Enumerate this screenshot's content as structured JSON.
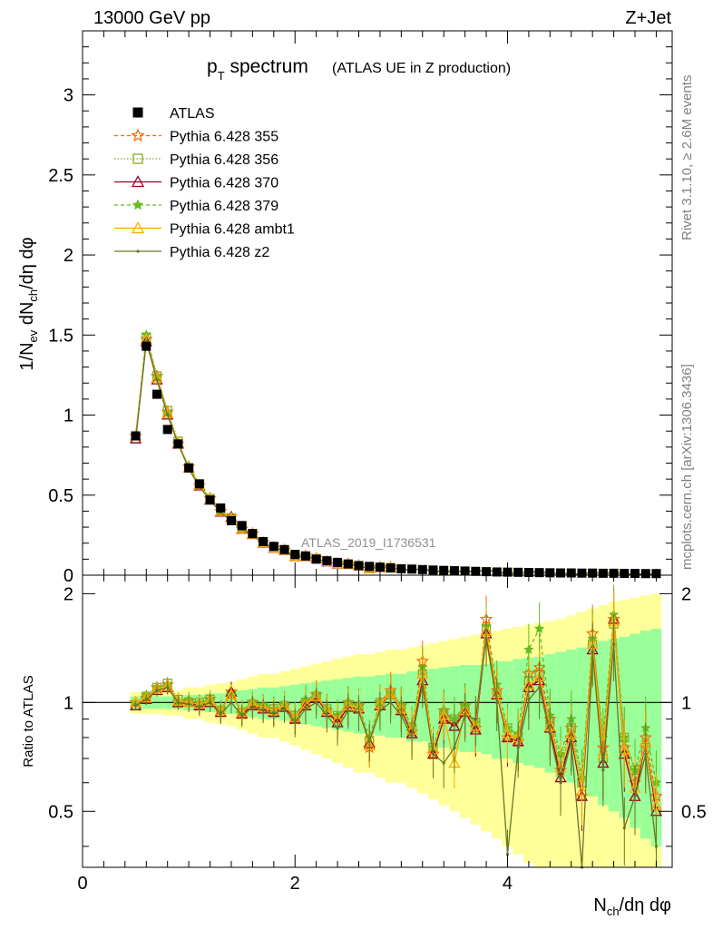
{
  "header": {
    "energy_label": "13000 GeV pp",
    "process_label": "Z+Jet"
  },
  "side_labels": {
    "rivet": "Rivet 3.1.10, ≥ 2.6M events",
    "mcplots": "mcplots.cern.ch [arXiv:1306.3436]"
  },
  "chart_data": [
    {
      "type": "line",
      "title_main": "p",
      "title_sub": "T",
      "title_rest": " spectrum",
      "title_paren": "(ATLAS UE in Z production)",
      "analysis_id": "ATLAS_2019_I1736531",
      "ylabel": "1/N_ev dN_ch/dη dφ",
      "xlim": [
        0,
        5.55
      ],
      "ylim": [
        0,
        3.4
      ],
      "x": [
        0.5,
        0.6,
        0.7,
        0.8,
        0.9,
        1.0,
        1.1,
        1.2,
        1.3,
        1.4,
        1.5,
        1.6,
        1.7,
        1.8,
        1.9,
        2.0,
        2.1,
        2.2,
        2.3,
        2.4,
        2.5,
        2.6,
        2.7,
        2.8,
        2.9,
        3.0,
        3.1,
        3.2,
        3.3,
        3.4,
        3.5,
        3.6,
        3.7,
        3.8,
        3.9,
        4.0,
        4.1,
        4.2,
        4.3,
        4.4,
        4.5,
        4.6,
        4.7,
        4.8,
        4.9,
        5.0,
        5.1,
        5.2,
        5.3,
        5.4
      ],
      "yticks": [
        0,
        0.5,
        1,
        1.5,
        2,
        2.5,
        3
      ],
      "ytick_labels": [
        "0",
        "0.5",
        "1",
        "1.5",
        "2",
        "2.5",
        "3"
      ],
      "legend_placement": "top-left",
      "series": [
        {
          "name": "ATLAS",
          "color": "#000000",
          "marker": "square",
          "dash": "",
          "values": [
            0.87,
            1.43,
            1.13,
            0.91,
            0.82,
            0.67,
            0.57,
            0.47,
            0.42,
            0.34,
            0.31,
            0.26,
            0.21,
            0.18,
            0.16,
            0.13,
            0.12,
            0.1,
            0.09,
            0.08,
            0.07,
            0.06,
            0.055,
            0.05,
            0.045,
            0.04,
            0.038,
            0.035,
            0.032,
            0.03,
            0.028,
            0.026,
            0.024,
            0.022,
            0.02,
            0.019,
            0.018,
            0.017,
            0.016,
            0.015,
            0.014,
            0.014,
            0.013,
            0.013,
            0.012,
            0.012,
            0.011,
            0.011,
            0.01,
            0.01
          ]
        },
        {
          "name": "Pythia 6.428 355",
          "color": "#ff6600",
          "marker": "star-open",
          "dash": "4,3"
        },
        {
          "name": "Pythia 6.428 356",
          "color": "#88aa22",
          "marker": "square-open",
          "dash": "1.5,2"
        },
        {
          "name": "Pythia 6.428 370",
          "color": "#990022",
          "marker": "triangle-open",
          "dash": ""
        },
        {
          "name": "Pythia 6.428 379",
          "color": "#66bb22",
          "marker": "star",
          "dash": "4,3"
        },
        {
          "name": "Pythia 6.428 ambt1",
          "color": "#ffaa00",
          "marker": "triangle-open",
          "dash": ""
        },
        {
          "name": "Pythia 6.428 z2",
          "color": "#667722",
          "marker": "dot",
          "dash": ""
        }
      ],
      "mc_shape": [
        0.85,
        1.47,
        1.2,
        0.97,
        0.81,
        0.68,
        0.57,
        0.46,
        0.4,
        0.34,
        0.28,
        0.25,
        0.21,
        0.18,
        0.16,
        0.13,
        0.12,
        0.1,
        0.09,
        0.08,
        0.07,
        0.06,
        0.055,
        0.05,
        0.045,
        0.04,
        0.038,
        0.035,
        0.032,
        0.03,
        0.028,
        0.026,
        0.024,
        0.022,
        0.02,
        0.019,
        0.018,
        0.017,
        0.016,
        0.015,
        0.014,
        0.014,
        0.013,
        0.013,
        0.012,
        0.012,
        0.011,
        0.011,
        0.01,
        0.01
      ]
    },
    {
      "type": "line",
      "ylabel": "Ratio to ATLAS",
      "xlabel": "N_ch/dη dφ",
      "xlim": [
        0,
        5.55
      ],
      "ylim": [
        0.35,
        2.25
      ],
      "xticks": [
        0,
        2,
        4
      ],
      "xtick_labels": [
        "0",
        "2",
        "4"
      ],
      "yticks": [
        0.5,
        1,
        2
      ],
      "ytick_labels": [
        "0.5",
        "1",
        "2"
      ],
      "band_inner_halfwidth": [
        0.04,
        0.04,
        0.04,
        0.04,
        0.04,
        0.05,
        0.05,
        0.06,
        0.06,
        0.07,
        0.08,
        0.09,
        0.1,
        0.1,
        0.11,
        0.12,
        0.13,
        0.14,
        0.15,
        0.16,
        0.17,
        0.18,
        0.18,
        0.19,
        0.2,
        0.2,
        0.22,
        0.22,
        0.24,
        0.25,
        0.26,
        0.27,
        0.27,
        0.28,
        0.3,
        0.3,
        0.32,
        0.33,
        0.34,
        0.36,
        0.38,
        0.4,
        0.42,
        0.45,
        0.48,
        0.5,
        0.52,
        0.55,
        0.58,
        0.6
      ],
      "band_outer_halfwidth": [
        0.07,
        0.07,
        0.07,
        0.08,
        0.08,
        0.1,
        0.1,
        0.12,
        0.13,
        0.14,
        0.16,
        0.18,
        0.2,
        0.2,
        0.22,
        0.24,
        0.26,
        0.28,
        0.3,
        0.32,
        0.34,
        0.36,
        0.36,
        0.38,
        0.4,
        0.4,
        0.42,
        0.44,
        0.46,
        0.48,
        0.5,
        0.52,
        0.54,
        0.56,
        0.58,
        0.6,
        0.62,
        0.64,
        0.66,
        0.68,
        0.7,
        0.74,
        0.78,
        0.82,
        0.86,
        0.9,
        0.92,
        0.95,
        0.98,
        1.0
      ],
      "series": [
        {
          "name": "Pythia 6.428 355",
          "values": [
            1.0,
            1.03,
            1.1,
            1.12,
            1.0,
            1.01,
            0.98,
            1.02,
            0.95,
            1.07,
            0.93,
            1.0,
            0.97,
            0.95,
            0.98,
            0.9,
            1.0,
            1.05,
            0.95,
            0.9,
            1.0,
            0.98,
            0.75,
            1.0,
            1.08,
            0.98,
            0.83,
            1.3,
            0.72,
            0.95,
            0.88,
            0.98,
            0.85,
            1.7,
            1.08,
            0.8,
            0.78,
            1.2,
            1.25,
            0.9,
            0.65,
            0.85,
            0.55,
            1.55,
            0.75,
            1.7,
            0.75,
            0.6,
            0.8,
            0.55
          ]
        },
        {
          "name": "Pythia 6.428 356",
          "values": [
            0.98,
            1.04,
            1.1,
            1.13,
            1.02,
            1.0,
            1.0,
            1.02,
            0.95,
            1.05,
            0.94,
            0.99,
            0.97,
            0.96,
            0.98,
            0.92,
            1.0,
            1.04,
            0.96,
            0.92,
            0.98,
            0.97,
            0.78,
            1.0,
            1.05,
            0.97,
            0.85,
            1.2,
            0.75,
            0.92,
            0.9,
            0.95,
            0.88,
            1.6,
            1.05,
            0.85,
            0.8,
            1.15,
            1.2,
            0.88,
            0.7,
            0.85,
            0.6,
            1.45,
            0.7,
            1.65,
            0.8,
            0.65,
            0.75,
            0.5
          ]
        },
        {
          "name": "Pythia 6.428 370",
          "values": [
            0.98,
            1.02,
            1.08,
            1.1,
            1.0,
            1.0,
            0.98,
            1.0,
            0.94,
            1.07,
            0.93,
            0.98,
            0.96,
            0.94,
            0.97,
            0.9,
            0.98,
            1.03,
            0.94,
            0.88,
            0.97,
            0.96,
            0.77,
            0.98,
            1.06,
            0.95,
            0.82,
            1.15,
            0.72,
            0.9,
            0.86,
            0.94,
            0.84,
            1.55,
            1.05,
            0.8,
            0.78,
            1.1,
            1.15,
            0.85,
            0.62,
            0.8,
            0.55,
            1.4,
            0.68,
            1.7,
            0.72,
            0.55,
            0.78,
            0.5
          ]
        },
        {
          "name": "Pythia 6.428 379",
          "values": [
            1.0,
            1.05,
            1.1,
            1.12,
            1.0,
            1.02,
            1.0,
            1.02,
            0.96,
            1.05,
            0.95,
            1.0,
            0.98,
            0.96,
            0.99,
            0.92,
            1.02,
            1.05,
            0.96,
            0.92,
            1.0,
            0.98,
            0.8,
            1.0,
            1.06,
            0.98,
            0.86,
            1.25,
            0.75,
            0.95,
            0.9,
            0.98,
            0.88,
            1.62,
            1.12,
            0.85,
            0.82,
            1.4,
            1.6,
            0.92,
            0.72,
            0.9,
            0.62,
            1.5,
            0.8,
            1.75,
            0.8,
            0.65,
            0.85,
            0.6
          ]
        },
        {
          "name": "Pythia 6.428 ambt1",
          "values": [
            1.0,
            1.03,
            1.09,
            1.11,
            1.01,
            1.0,
            0.99,
            1.01,
            0.95,
            1.05,
            0.94,
            0.99,
            0.97,
            0.95,
            0.98,
            0.91,
            0.99,
            1.04,
            0.95,
            0.9,
            0.98,
            0.97,
            0.76,
            0.99,
            1.06,
            0.96,
            0.84,
            1.2,
            0.74,
            0.92,
            0.68,
            0.95,
            0.86,
            1.58,
            1.06,
            0.82,
            0.8,
            1.12,
            1.18,
            0.86,
            0.66,
            0.82,
            0.57,
            1.45,
            0.72,
            1.68,
            0.74,
            0.58,
            0.78,
            0.52
          ]
        },
        {
          "name": "Pythia 6.428 z2",
          "values": [
            0.98,
            1.02,
            1.08,
            1.1,
            1.0,
            0.99,
            0.97,
            1.0,
            0.93,
            1.0,
            0.92,
            0.97,
            0.95,
            0.93,
            0.96,
            0.88,
            0.96,
            1.0,
            0.92,
            0.85,
            0.95,
            0.94,
            0.78,
            0.95,
            1.0,
            0.92,
            0.8,
            1.12,
            0.72,
            0.68,
            0.75,
            0.92,
            0.9,
            1.5,
            1.0,
            0.38,
            0.75,
            1.02,
            1.1,
            0.82,
            0.6,
            0.78,
            0.3,
            1.38,
            0.65,
            1.45,
            0.45,
            0.55,
            0.72,
            0.4
          ]
        }
      ]
    }
  ]
}
